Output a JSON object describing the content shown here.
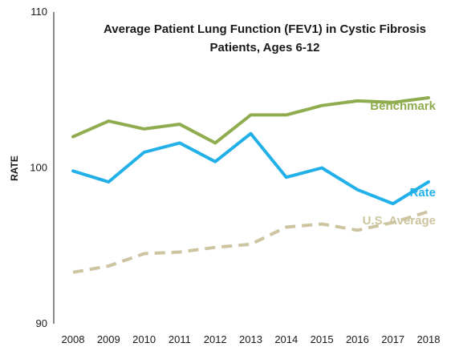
{
  "chart_data": {
    "type": "line",
    "title_line1": "Average Patient Lung Function (FEV1) in Cystic Fibrosis",
    "title_line2": "Patients, Ages 6-12",
    "xlabel": "",
    "ylabel": "RATE",
    "ylim": [
      90,
      110
    ],
    "yticks": [
      90,
      100,
      110
    ],
    "x": [
      "2008",
      "2009",
      "2010",
      "2011",
      "2012",
      "2013",
      "2014",
      "2015",
      "2016",
      "2017",
      "2018"
    ],
    "grid": false,
    "series": [
      {
        "name": "Benchmark",
        "color": "#8fac4f",
        "style": "solid",
        "values": [
          102.0,
          103.0,
          102.5,
          102.8,
          101.6,
          103.4,
          103.4,
          104.0,
          104.3,
          104.2,
          104.5
        ]
      },
      {
        "name": "Rate",
        "color": "#22b0e8",
        "style": "solid",
        "values": [
          99.8,
          99.1,
          101.0,
          101.6,
          100.4,
          102.2,
          99.4,
          100.0,
          98.6,
          97.7,
          99.1
        ]
      },
      {
        "name": "U.S. Average",
        "color": "#cdc4a0",
        "style": "dashed",
        "values": [
          93.3,
          93.7,
          94.5,
          94.6,
          94.9,
          95.1,
          96.2,
          96.4,
          96.0,
          96.5,
          97.2
        ]
      }
    ]
  }
}
